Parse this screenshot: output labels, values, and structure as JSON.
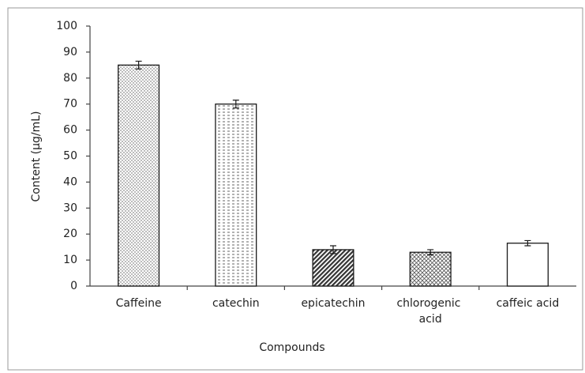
{
  "chart_data": {
    "type": "bar",
    "categories": [
      "Caffeine",
      "catechin",
      "epicatechin",
      "chlorogenic acid",
      "caffeic acid"
    ],
    "values": [
      85,
      70,
      14,
      13,
      16.5
    ],
    "errors": [
      1.5,
      1.5,
      1.5,
      1,
      1
    ],
    "x_label": "Compounds",
    "y_label": "Content (µg/mL)",
    "ylim": [
      0,
      100
    ],
    "yticks": [
      0,
      10,
      20,
      30,
      40,
      50,
      60,
      70,
      80,
      90,
      100
    ],
    "grid": false,
    "color": "#1a1a1a"
  }
}
